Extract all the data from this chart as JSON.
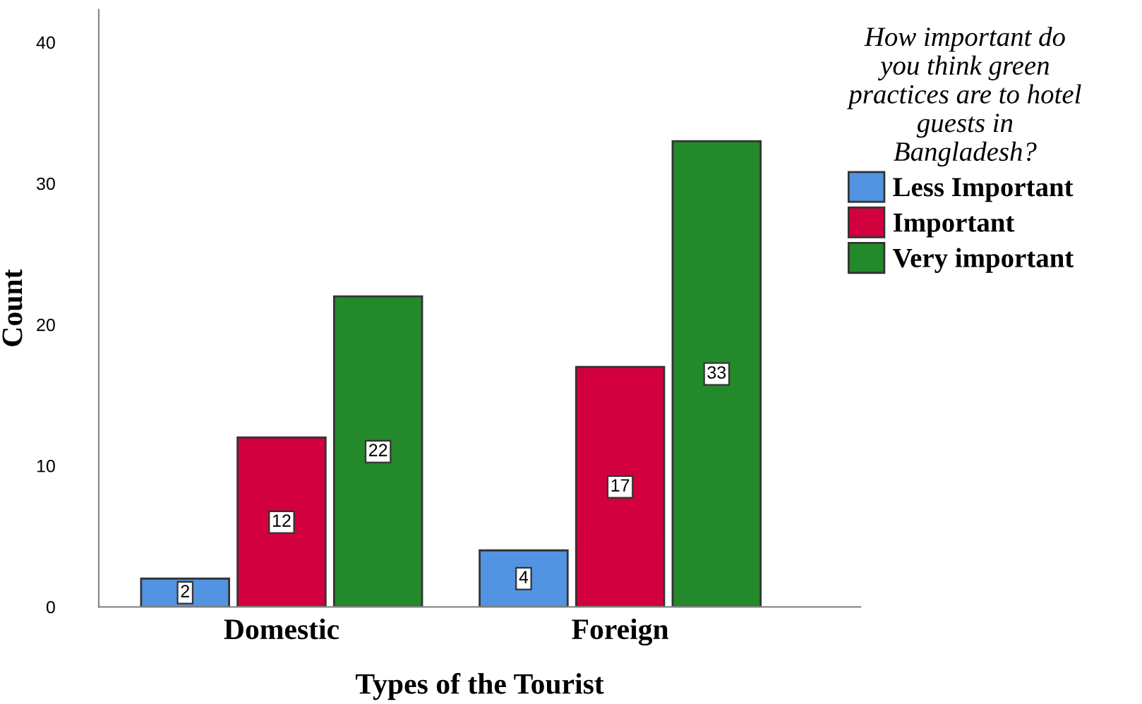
{
  "chart_data": {
    "type": "bar",
    "categories": [
      "Domestic",
      "Foreign"
    ],
    "xlabel": "Types of the Tourist",
    "ylabel": "Count",
    "legend_title": "How important do\nyou think green\npractices are to hotel\nguests in\nBangladesh?",
    "series": [
      {
        "name": "Less Important",
        "color": "#5294e2",
        "values": [
          2,
          4
        ]
      },
      {
        "name": "Important",
        "color": "#d3003f",
        "values": [
          12,
          17
        ]
      },
      {
        "name": "Very important",
        "color": "#24892a",
        "values": [
          22,
          33
        ]
      }
    ],
    "ylim": [
      0,
      42.3
    ],
    "yticks": [
      0,
      10,
      20,
      30,
      40
    ],
    "data_labels": true,
    "legend": "right",
    "grid": false
  }
}
